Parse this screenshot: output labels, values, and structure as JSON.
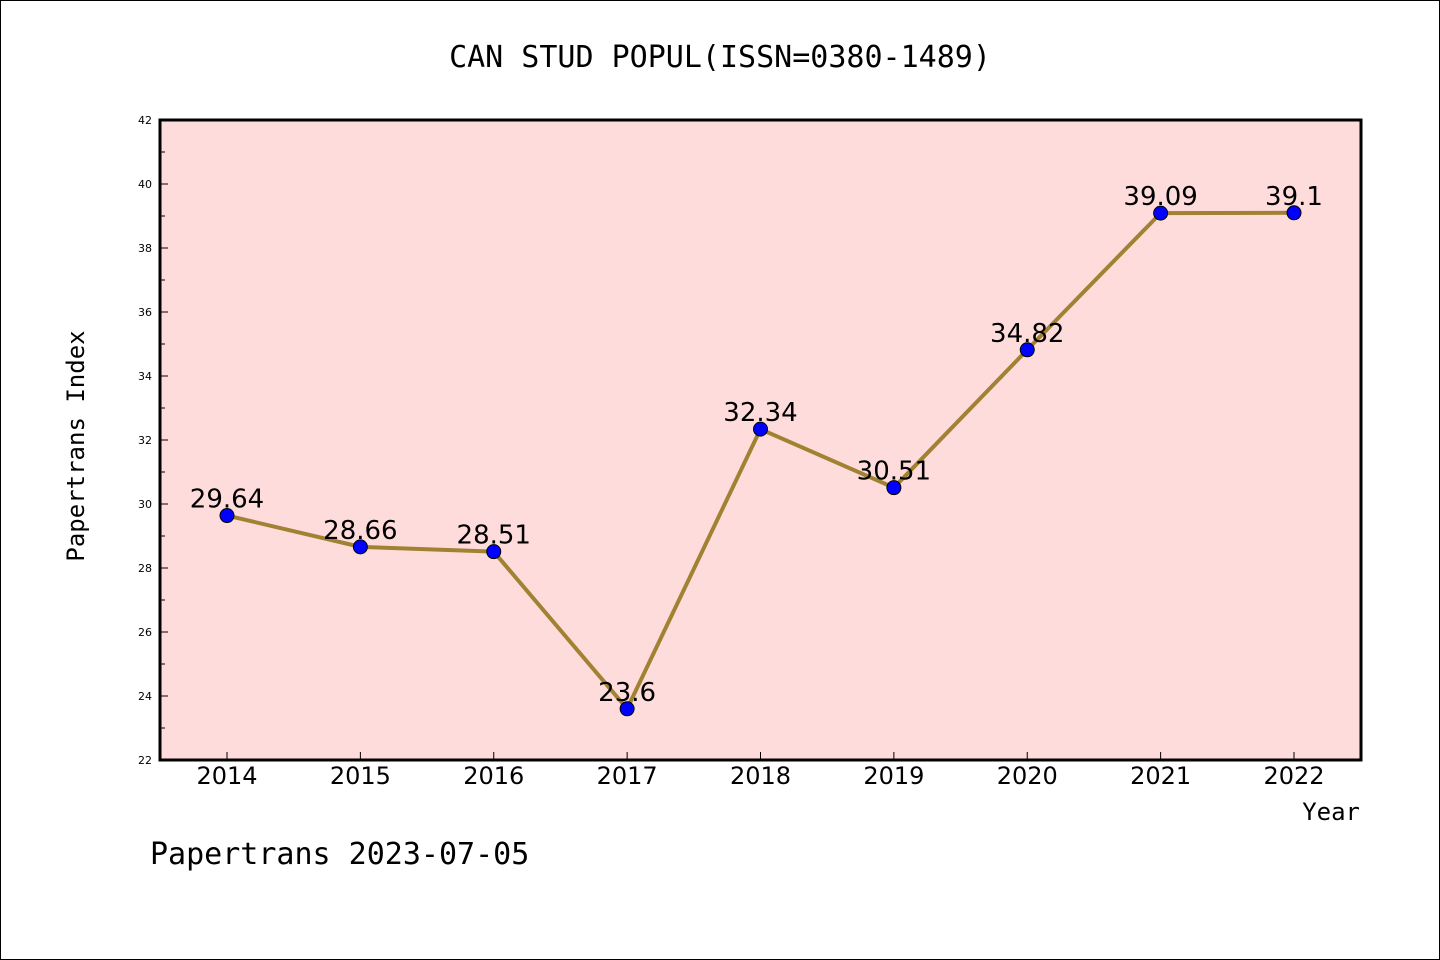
{
  "chart_data": {
    "type": "line",
    "title": "CAN STUD POPUL(ISSN=0380-1489)",
    "xlabel": "Year",
    "ylabel": "Papertrans Index",
    "categories": [
      "2014",
      "2015",
      "2016",
      "2017",
      "2018",
      "2019",
      "2020",
      "2021",
      "2022"
    ],
    "values": [
      29.64,
      28.66,
      28.51,
      23.6,
      32.34,
      30.51,
      34.82,
      39.09,
      39.1
    ],
    "data_labels": [
      "29.64",
      "28.66",
      "28.51",
      "23.6",
      "32.34",
      "30.51",
      "34.82",
      "39.09",
      "39.1"
    ],
    "ylim": [
      22,
      42
    ],
    "yticks": [
      22,
      24,
      26,
      28,
      30,
      32,
      34,
      36,
      38,
      40,
      42
    ],
    "grid": false,
    "legend": "none",
    "colors": {
      "plot_background": "#FFDCDC",
      "line": "#A08232",
      "marker": "#0000FF"
    }
  },
  "footer": "Papertrans 2023-07-05"
}
